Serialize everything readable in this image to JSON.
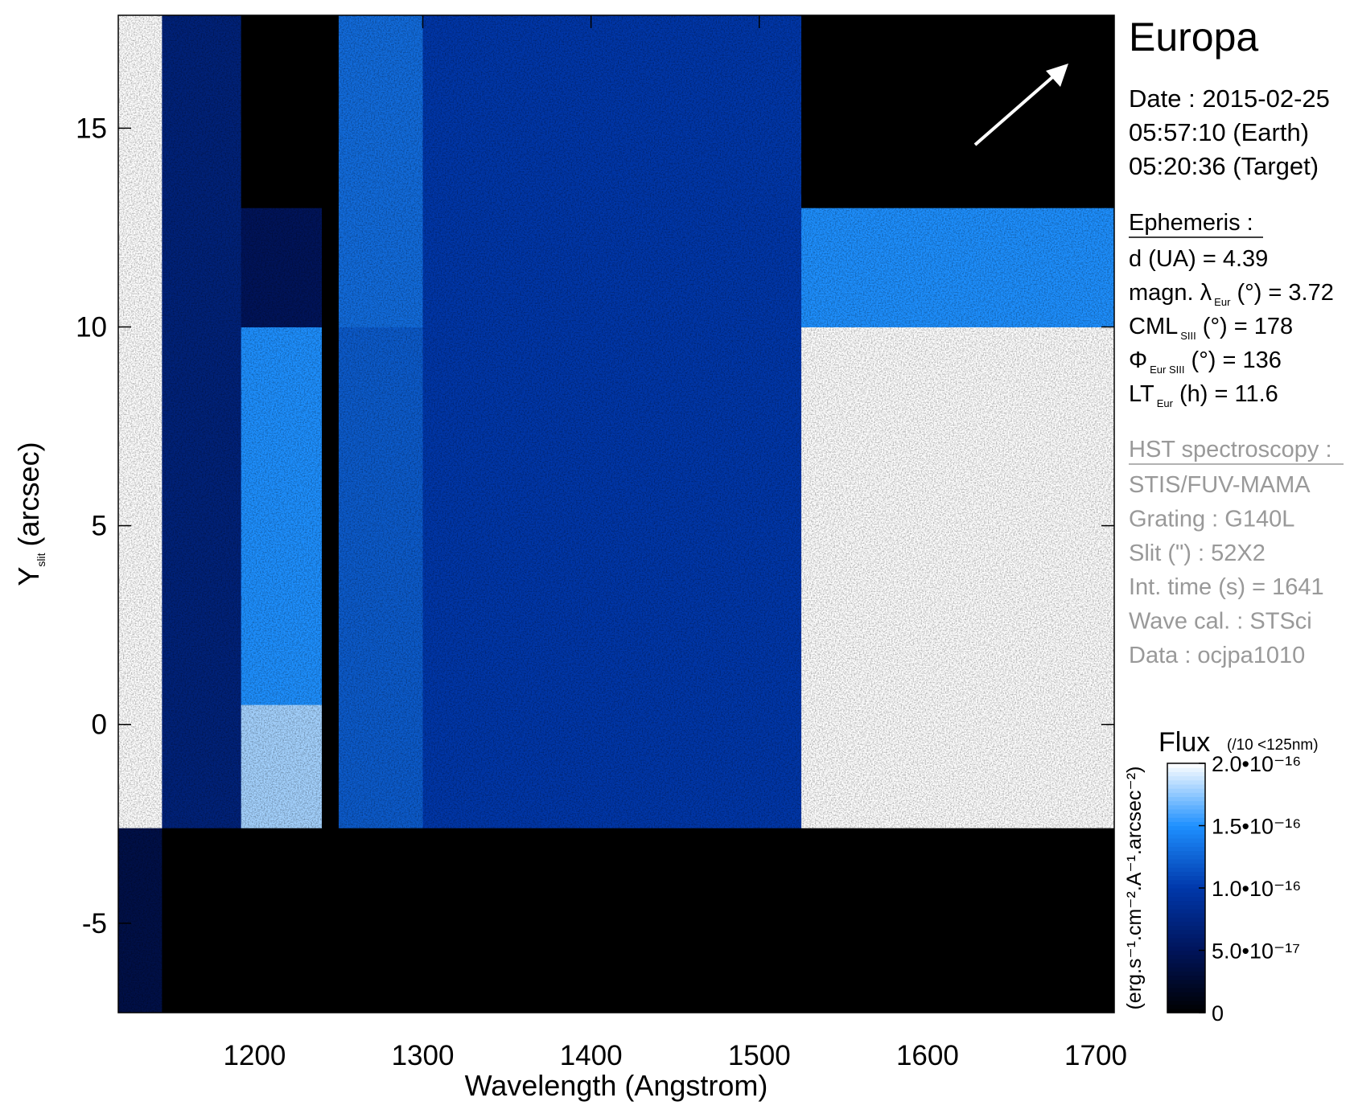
{
  "chart_data": {
    "type": "heatmap",
    "xlabel": "Wavelength (Angstrom)",
    "ylabel": "Y",
    "ylabel_sub": "slit",
    "ylabel_unit": "(arcsec)",
    "xlim": [
      1119,
      1711
    ],
    "xticks": [
      1200,
      1300,
      1400,
      1500,
      1600,
      1700
    ],
    "ylim": [
      -7.25,
      17.84
    ],
    "yticks": [
      -5,
      0,
      5,
      10,
      15
    ],
    "x_edges": [
      1119,
      1145,
      1192,
      1240,
      1250,
      1300,
      1525,
      1711
    ],
    "y_edges": [
      -7.25,
      -2.6,
      0.5,
      10,
      13,
      17.84
    ],
    "z": [
      [
        4e-17,
        0,
        0,
        0,
        0,
        0,
        0
      ],
      [
        2e-16,
        7e-17,
        1.8e-16,
        0,
        1.2e-16,
        1e-16,
        2e-16
      ],
      [
        2e-16,
        7e-17,
        1.5e-16,
        0,
        1.2e-16,
        1e-16,
        2e-16
      ],
      [
        2e-16,
        7e-17,
        5e-17,
        0,
        1.3e-16,
        1e-16,
        1.5e-16
      ],
      [
        2e-16,
        7e-17,
        0,
        0,
        1.3e-16,
        1e-16,
        0
      ]
    ],
    "colorbar": {
      "title": "Flux",
      "note": "(/10 <125nm)",
      "label": "(erg.s⁻¹.cm⁻².A⁻¹.arcsec⁻²)",
      "zlim": [
        0,
        2e-16
      ],
      "ticks": [
        {
          "value": 0,
          "label": "0"
        },
        {
          "value": 5e-17,
          "label": "5.0•10⁻¹⁷"
        },
        {
          "value": 1e-16,
          "label": "1.0•10⁻¹⁶"
        },
        {
          "value": 1.5e-16,
          "label": "1.5•10⁻¹⁶"
        },
        {
          "value": 2e-16,
          "label": "2.0•10⁻¹⁶"
        }
      ]
    },
    "info": {
      "target": "Europa",
      "date": [
        "Date : 2015-02-25",
        "05:57:10 (Earth)",
        "05:20:36 (Target)"
      ],
      "ephemeris_title": "Ephemeris :",
      "ephemeris": [
        [
          "d (UA)     = 4.39"
        ],
        [
          "magn. λ",
          "Eur",
          " (°)  = 3.72"
        ],
        [
          "CML",
          "SIII",
          " (°) = 178"
        ],
        [
          "Φ",
          "Eur SIII",
          " (°) = 136"
        ],
        [
          "LT",
          "Eur",
          " (h) = 11.6"
        ]
      ],
      "hst_title": "HST spectroscopy :",
      "hst": [
        "STIS/FUV-MAMA",
        "Grating : G140L",
        "Slit (\") : 52X2",
        "Int. time (s) = 1641",
        "Wave cal. : STSci",
        "Data : ocjpa1010"
      ]
    }
  }
}
